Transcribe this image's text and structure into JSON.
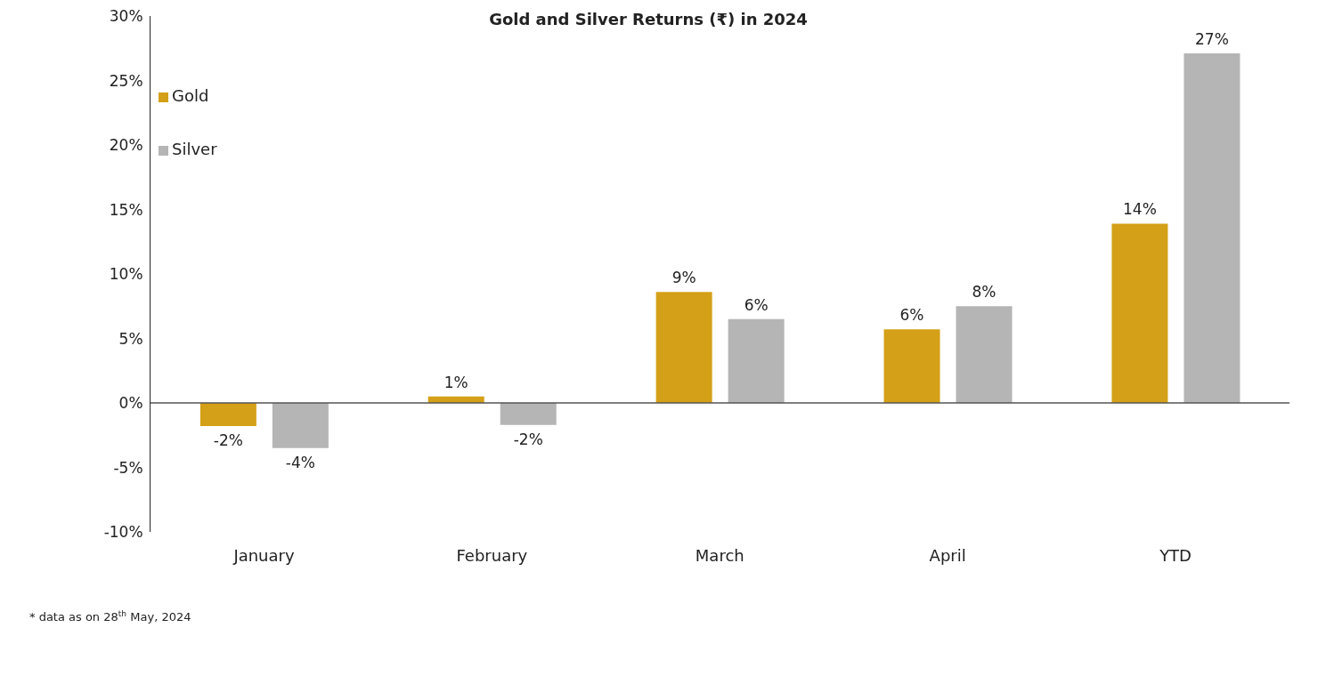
{
  "chart_data": {
    "type": "bar",
    "title": "Gold and Silver Returns (₹) in 2024",
    "categories": [
      "January",
      "February",
      "March",
      "April",
      "YTD"
    ],
    "series": [
      {
        "name": "Gold",
        "color": "#d4a017",
        "values": [
          -1.8,
          0.5,
          8.6,
          5.7,
          13.9
        ],
        "value_labels": [
          "-2%",
          "1%",
          "9%",
          "6%",
          "14%"
        ]
      },
      {
        "name": "Silver",
        "color": "#b5b5b5",
        "values": [
          -3.5,
          -1.7,
          6.5,
          7.5,
          27.1
        ],
        "value_labels": [
          "-4%",
          "-2%",
          "6%",
          "8%",
          "27%"
        ]
      }
    ],
    "ylim": [
      -10,
      30
    ],
    "yticks": [
      {
        "value": -10,
        "label": "-10%"
      },
      {
        "value": -5,
        "label": "-5%"
      },
      {
        "value": 0,
        "label": "0%"
      },
      {
        "value": 5,
        "label": "5%"
      },
      {
        "value": 10,
        "label": "10%"
      },
      {
        "value": 15,
        "label": "15%"
      },
      {
        "value": 20,
        "label": "20%"
      },
      {
        "value": 25,
        "label": "25%"
      },
      {
        "value": 30,
        "label": "30%"
      }
    ],
    "legend": "top left",
    "annotations": [
      "* data as on 28$^{th}$ May, 2024"
    ]
  }
}
